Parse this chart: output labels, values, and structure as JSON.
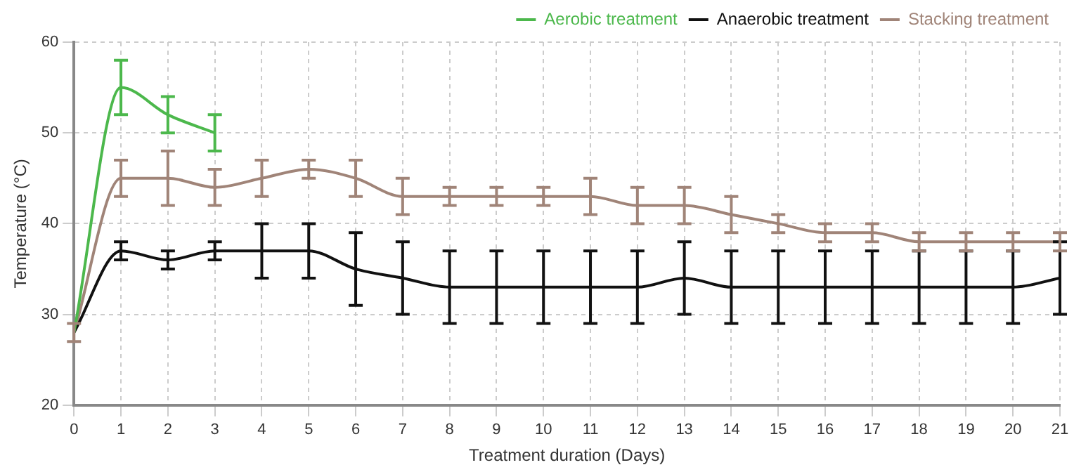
{
  "chart_data": {
    "type": "line",
    "xlabel": "Treatment duration (Days)",
    "ylabel": "Temperature (°C)",
    "xlim": [
      0,
      21
    ],
    "xticks": [
      0,
      1,
      2,
      3,
      4,
      5,
      6,
      7,
      8,
      9,
      10,
      11,
      12,
      13,
      14,
      15,
      16,
      17,
      18,
      19,
      20,
      21
    ],
    "ylim": [
      20,
      60
    ],
    "yticks": [
      20,
      30,
      40,
      50,
      60
    ],
    "grid": true,
    "legend": "top right",
    "series": [
      {
        "name": "Aerobic treatment",
        "color": "#4cb84c",
        "x": [
          0,
          1,
          2,
          3
        ],
        "values": [
          28,
          55,
          52,
          50
        ],
        "errors": [
          null,
          3,
          2,
          2
        ]
      },
      {
        "name": "Anaerobic treatment",
        "color": "#111111",
        "x": [
          0,
          1,
          2,
          3,
          4,
          5,
          6,
          7,
          8,
          9,
          10,
          11,
          12,
          13,
          14,
          15,
          16,
          17,
          18,
          19,
          20,
          21
        ],
        "values": [
          28,
          37,
          36,
          37,
          37,
          37,
          35,
          34,
          33,
          33,
          33,
          33,
          33,
          34,
          33,
          33,
          33,
          33,
          33,
          33,
          33,
          34
        ],
        "errors": [
          null,
          1,
          1,
          1,
          3,
          3,
          4,
          4,
          4,
          4,
          4,
          4,
          4,
          4,
          4,
          4,
          4,
          4,
          4,
          4,
          4,
          4
        ]
      },
      {
        "name": "Stacking treatment",
        "color": "#a08478",
        "x": [
          0,
          1,
          2,
          3,
          4,
          5,
          6,
          7,
          8,
          9,
          10,
          11,
          12,
          13,
          14,
          15,
          16,
          17,
          18,
          19,
          20,
          21
        ],
        "values": [
          28,
          45,
          45,
          44,
          45,
          46,
          45,
          43,
          43,
          43,
          43,
          43,
          42,
          42,
          41,
          40,
          39,
          39,
          38,
          38,
          38,
          38
        ],
        "errors": [
          1,
          2,
          3,
          2,
          2,
          1,
          2,
          2,
          1,
          1,
          1,
          2,
          2,
          2,
          2,
          1,
          1,
          1,
          1,
          1,
          1,
          1
        ]
      }
    ]
  }
}
